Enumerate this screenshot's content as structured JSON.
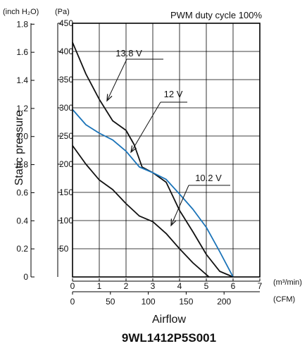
{
  "chart_data": {
    "type": "line",
    "model": "9WL1412P5S001",
    "note": "PWM duty cycle 100%",
    "xlabel": "Airflow",
    "ylabel": "Static pressure",
    "x_units": {
      "primary": "(m³/min)",
      "secondary": "(CFM)"
    },
    "y_units": {
      "primary": "(inch H₂O)",
      "secondary": "(Pa)"
    },
    "xlim": [
      0,
      7
    ],
    "ylim": [
      0,
      450
    ],
    "x_ticks_m3min": [
      "0",
      "1",
      "2",
      "3",
      "4",
      "5",
      "6",
      "7"
    ],
    "x_ticks_cfm": [
      "0",
      "50",
      "100",
      "150",
      "200"
    ],
    "y_ticks_pa": [
      "50",
      "100",
      "150",
      "200",
      "250",
      "300",
      "350",
      "400",
      "450"
    ],
    "y_ticks_inh2o": [
      "0",
      "0.2",
      "0.4",
      "0.6",
      "0.8",
      "1.0",
      "1.2",
      "1.4",
      "1.6",
      "1.8"
    ],
    "colors": {
      "13.8 V": "#111111",
      "12 V": "#1a73b8",
      "10.2 V": "#111111"
    },
    "series": [
      {
        "name": "13.8 V",
        "x": [
          0,
          0.5,
          1,
          1.5,
          2,
          2.3,
          2.6,
          3,
          3.5,
          4,
          4.5,
          5,
          5.5,
          6
        ],
        "y": [
          416,
          360,
          315,
          277,
          260,
          235,
          195,
          185,
          168,
          118,
          80,
          40,
          10,
          0
        ]
      },
      {
        "name": "12 V",
        "x": [
          0,
          0.5,
          1,
          1.5,
          2,
          2.5,
          3,
          3.5,
          4,
          4.5,
          5,
          5.5,
          6
        ],
        "y": [
          297,
          270,
          255,
          243,
          223,
          195,
          185,
          173,
          147,
          120,
          88,
          45,
          0
        ]
      },
      {
        "name": "10.2 V",
        "x": [
          0,
          0.5,
          1,
          1.5,
          2,
          2.5,
          3,
          3.5,
          4,
          4.5,
          5.1
        ],
        "y": [
          233,
          200,
          172,
          155,
          130,
          108,
          98,
          77,
          50,
          25,
          0
        ]
      }
    ]
  }
}
